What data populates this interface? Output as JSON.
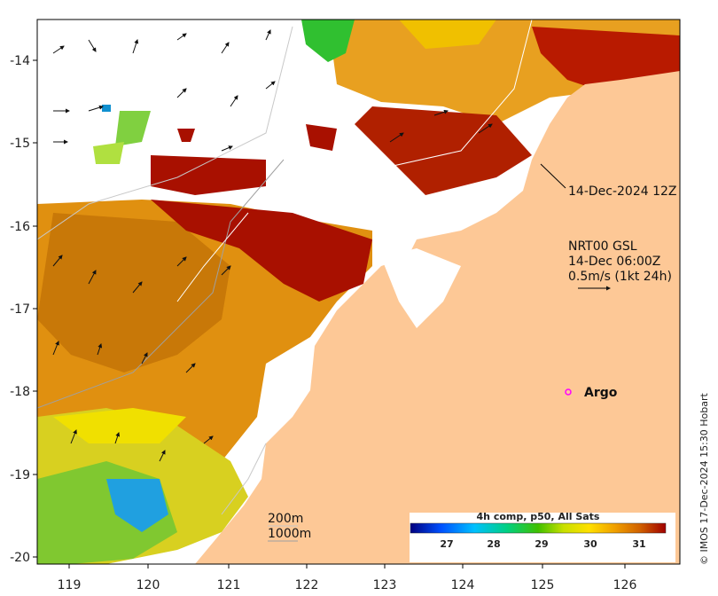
{
  "map": {
    "title_annotation": "14-Dec-2024 12Z",
    "current_info": {
      "line1": "NRT00 GSL",
      "line2": "14-Dec 06:00Z",
      "line3": "0.5m/s (1kt 24h)"
    },
    "argo_label": "Argo",
    "bathymetry": {
      "contour1": "200m",
      "contour2": "1000m"
    },
    "credit": "© IMOS 17-Dec-2024 15:30 Hobart",
    "colorbar": {
      "title": "4h comp, p50, All Sats",
      "ticks": [
        "27",
        "28",
        "29",
        "30",
        "31"
      ]
    },
    "x_ticks": [
      "119",
      "120",
      "121",
      "122",
      "123",
      "124",
      "125",
      "126"
    ],
    "y_ticks": [
      "-14",
      "-15",
      "-16",
      "-17",
      "-18",
      "-19",
      "-20"
    ],
    "colors": {
      "land": "#fdc896",
      "sst_low": "#00008b",
      "sst_high": "#a00000",
      "argo_marker": "#ff00ff"
    }
  }
}
